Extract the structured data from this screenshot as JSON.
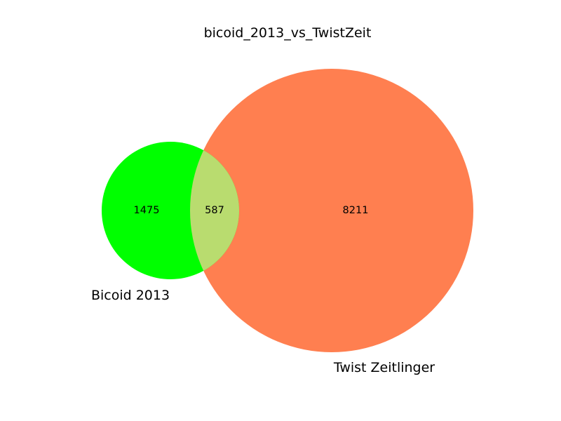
{
  "title": "bicoid_2013_vs_TwistZeit",
  "sets": {
    "a": {
      "label": "Bicoid 2013",
      "color": "#00ff00"
    },
    "b": {
      "label": "Twist Zeitlinger",
      "color": "#ff7f50"
    }
  },
  "overlap_color": "#b9dc6f",
  "regions": {
    "a_only": "1475",
    "ab": "587",
    "b_only": "8211"
  }
}
